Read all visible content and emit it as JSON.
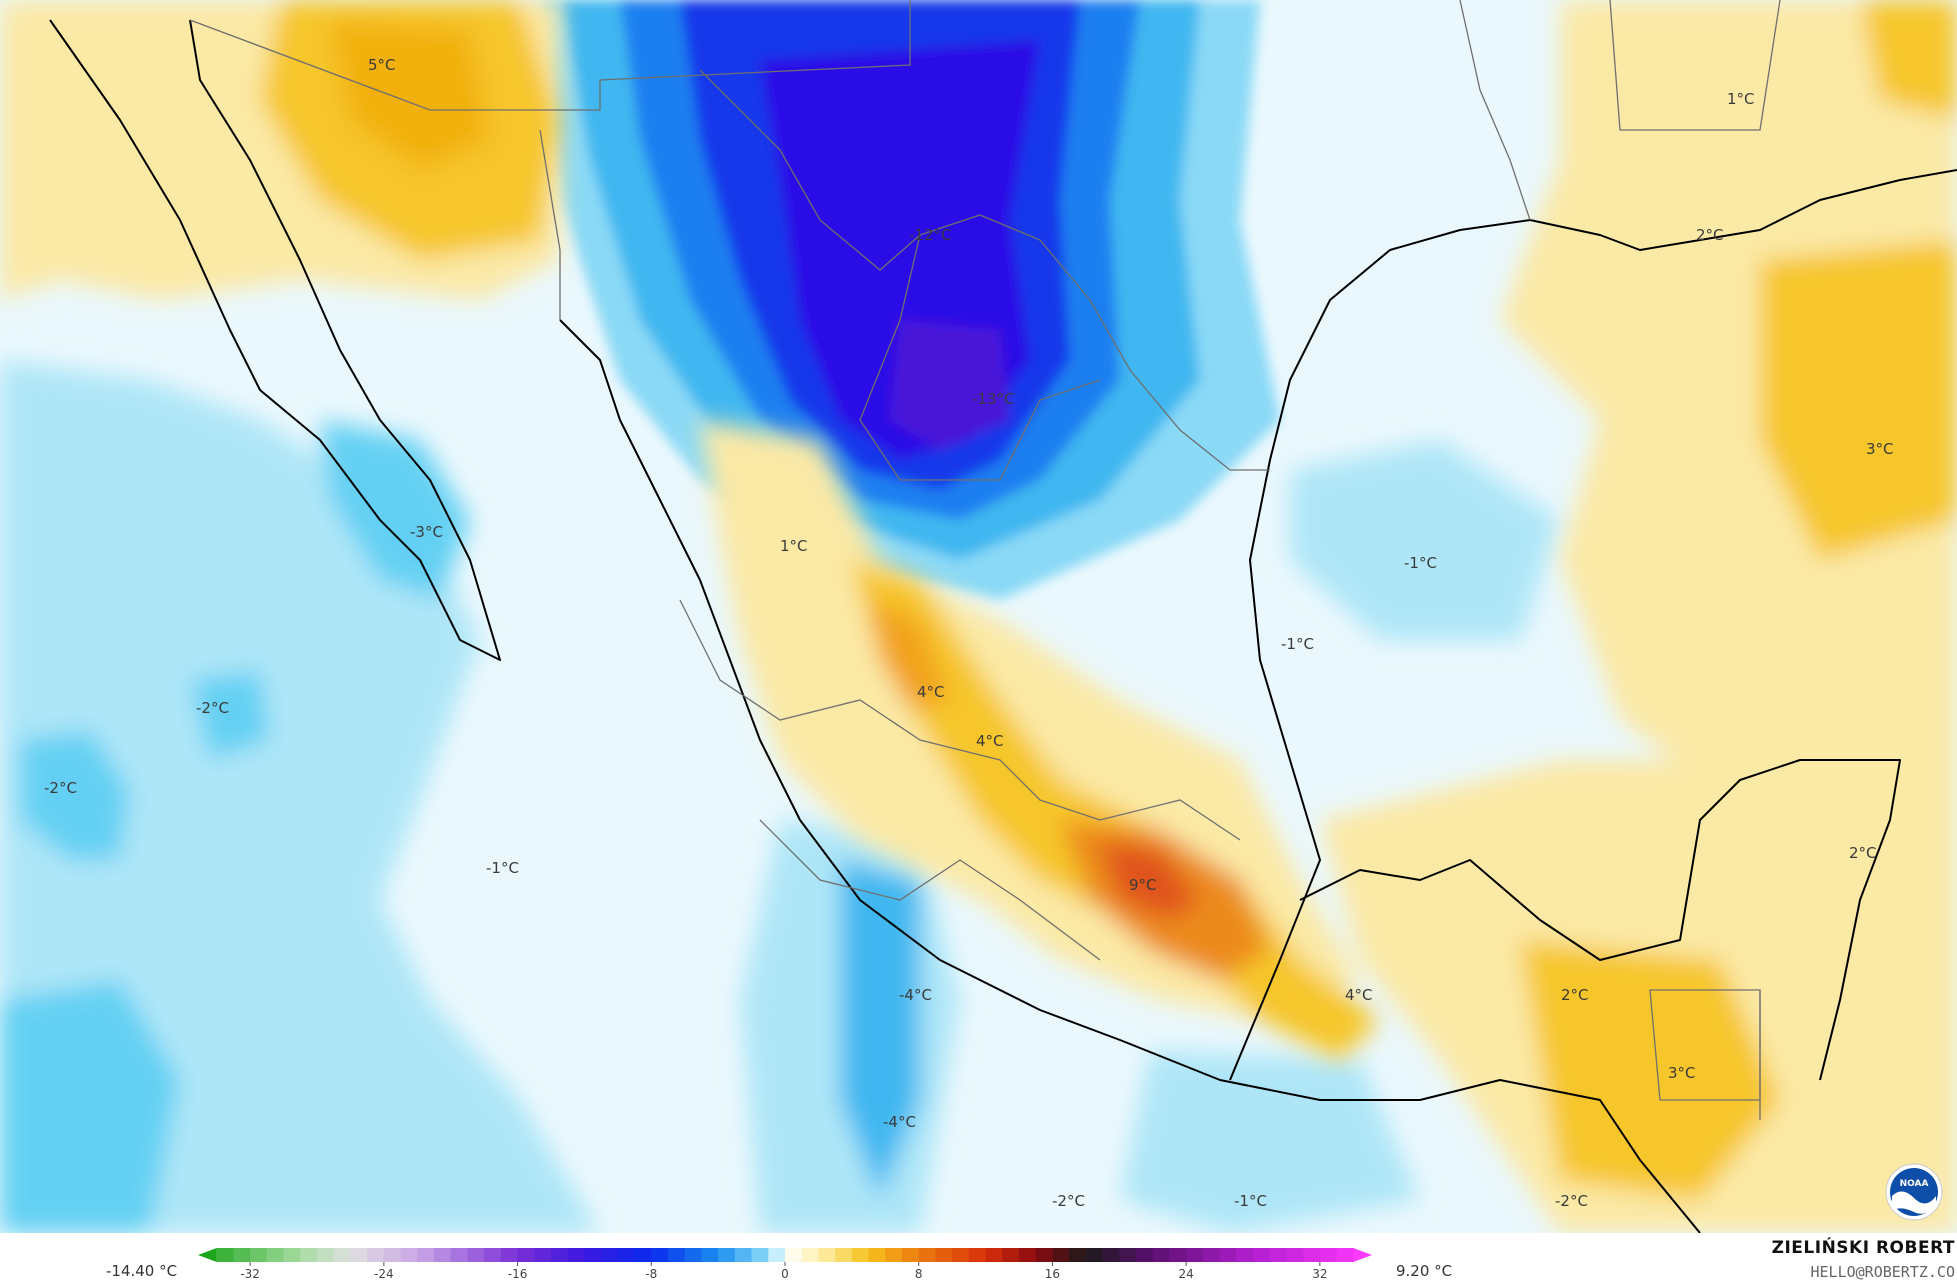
{
  "map": {
    "units": "°C",
    "labels": [
      {
        "text": "5°C"
      },
      {
        "text": "1°C"
      },
      {
        "text": "2°C"
      },
      {
        "text": "-12°C"
      },
      {
        "text": "-13°C"
      },
      {
        "text": "3°C"
      },
      {
        "text": "-3°C"
      },
      {
        "text": "1°C"
      },
      {
        "text": "-1°C"
      },
      {
        "text": "-1°C"
      },
      {
        "text": "4°C"
      },
      {
        "text": "4°C"
      },
      {
        "text": "-2°C"
      },
      {
        "text": "-2°C"
      },
      {
        "text": "-1°C"
      },
      {
        "text": "9°C"
      },
      {
        "text": "2°C"
      },
      {
        "text": "-4°C"
      },
      {
        "text": "4°C"
      },
      {
        "text": "2°C"
      },
      {
        "text": "-4°C"
      },
      {
        "text": "3°C"
      },
      {
        "text": "-2°C"
      },
      {
        "text": "-1°C"
      },
      {
        "text": "-2°C"
      }
    ]
  },
  "colorbar": {
    "min_label": "-14.40 °C",
    "max_label": "9.20 °C",
    "ticks": [
      "-32",
      "-24",
      "-16",
      "-8",
      "0",
      "8",
      "16",
      "24",
      "32"
    ],
    "range": [
      -35,
      35
    ],
    "stops": [
      {
        "v": -35,
        "c": "#1aa51a"
      },
      {
        "v": -29,
        "c": "#a6dca0"
      },
      {
        "v": -26,
        "c": "#e0e0e0"
      },
      {
        "v": -22,
        "c": "#c9a6e6"
      },
      {
        "v": -16,
        "c": "#7a2fd6"
      },
      {
        "v": -12,
        "c": "#3a18e0"
      },
      {
        "v": -8,
        "c": "#0a2aee"
      },
      {
        "v": -4,
        "c": "#1b8ef0"
      },
      {
        "v": -1,
        "c": "#8ddcf7"
      },
      {
        "v": 0,
        "c": "#ffffff"
      },
      {
        "v": 2,
        "c": "#fff1b0"
      },
      {
        "v": 5,
        "c": "#f5c21c"
      },
      {
        "v": 8,
        "c": "#ec7a0f"
      },
      {
        "v": 12,
        "c": "#d7300a"
      },
      {
        "v": 15,
        "c": "#8a0a10"
      },
      {
        "v": 18,
        "c": "#1a1a1a"
      },
      {
        "v": 22,
        "c": "#5a1070"
      },
      {
        "v": 28,
        "c": "#b21fd0"
      },
      {
        "v": 35,
        "c": "#ff3aff"
      }
    ]
  },
  "credit": {
    "name": "ZIELIŃSKI ROBERT",
    "email": "HELLO@ROBERTZ.CO"
  },
  "logo": {
    "icon": "noaa-logo",
    "text": "NOAA"
  },
  "colors": {
    "cold_deep": "#2a0fe6",
    "cold": "#1b8ef0",
    "cool": "#aee6f8",
    "neutral": "#ffffff",
    "warm": "#fbe9a6",
    "warmer": "#f6c629",
    "hot": "#e96a12",
    "coast_line": "#000000",
    "border_line": "#6f6f6f"
  }
}
